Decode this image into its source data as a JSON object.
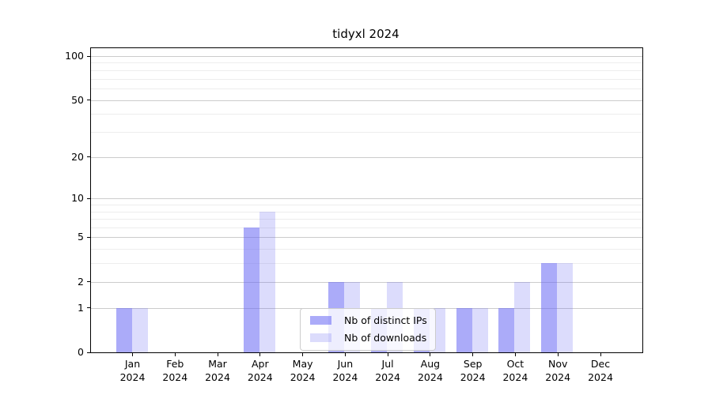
{
  "chart_data": {
    "type": "bar",
    "title": "tidyxl 2024",
    "categories": [
      {
        "label": "Jan",
        "sublabel": "2024"
      },
      {
        "label": "Feb",
        "sublabel": "2024"
      },
      {
        "label": "Mar",
        "sublabel": "2024"
      },
      {
        "label": "Apr",
        "sublabel": "2024"
      },
      {
        "label": "May",
        "sublabel": "2024"
      },
      {
        "label": "Jun",
        "sublabel": "2024"
      },
      {
        "label": "Jul",
        "sublabel": "2024"
      },
      {
        "label": "Aug",
        "sublabel": "2024"
      },
      {
        "label": "Sep",
        "sublabel": "2024"
      },
      {
        "label": "Oct",
        "sublabel": "2024"
      },
      {
        "label": "Nov",
        "sublabel": "2024"
      },
      {
        "label": "Dec",
        "sublabel": "2024"
      }
    ],
    "series": [
      {
        "name": "Nb of distinct IPs",
        "color": "rgba(102,102,244,0.55)",
        "values": [
          1,
          0,
          0,
          6,
          0,
          2,
          1,
          1,
          1,
          1,
          3,
          0
        ]
      },
      {
        "name": "Nb of downloads",
        "color": "rgba(102,102,244,0.23)",
        "values": [
          1,
          0,
          0,
          8,
          0,
          2,
          2,
          1,
          1,
          2,
          3,
          0
        ]
      }
    ],
    "xlabel": "",
    "ylabel": "",
    "y_axis": {
      "scale": "log1p",
      "ticks": [
        0,
        1,
        2,
        5,
        10,
        20,
        50,
        100
      ],
      "minor_ticks": [
        3,
        4,
        6,
        7,
        8,
        9,
        30,
        40,
        60,
        70,
        80,
        90
      ],
      "ylim": [
        0,
        113
      ]
    },
    "grid": "on",
    "legend": {
      "location": "inside lower-center"
    }
  }
}
